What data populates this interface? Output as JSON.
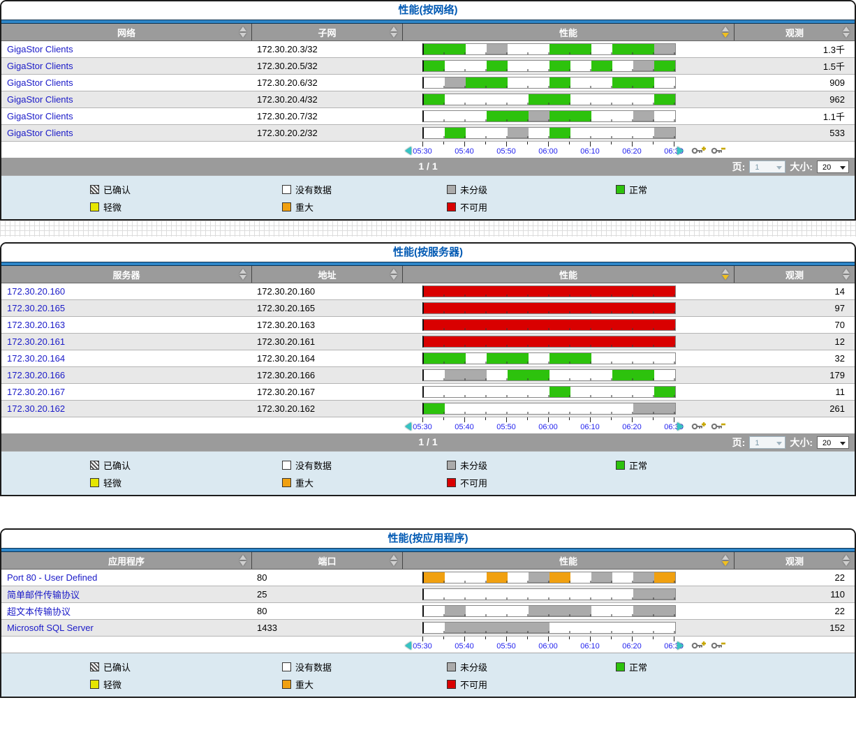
{
  "colors": {
    "normal": "#2DC20D",
    "unclassified": "#ABABAB",
    "no_data": "#FFFFFF",
    "minor": "#E6E600",
    "major": "#F0A010",
    "unavailable": "#D90000",
    "header_bg": "#9B9B9B",
    "legend_bg": "#DBE9F1",
    "title_blue": "#0059B3",
    "link_blue": "#1A1AC8"
  },
  "time_axis": {
    "labels": [
      "05:30",
      "05:40",
      "05:50",
      "06:00",
      "06:10",
      "06:20",
      "06:30"
    ],
    "prev_arrow": "previous-time-range",
    "next_arrow": "next-time-range",
    "zoom_in": "zoom-in-time",
    "zoom_out": "zoom-out-time"
  },
  "pagination": {
    "position_text": "1 / 1",
    "page_label": "页:",
    "page_value": "1",
    "size_label": "大小:",
    "size_value": "20"
  },
  "legend": {
    "rows": [
      [
        {
          "label": "已确认",
          "type": "ack"
        },
        {
          "label": "没有数据",
          "type": "nodata"
        },
        {
          "label": "未分级",
          "type": "unclassified"
        },
        {
          "label": "正常",
          "type": "normal"
        }
      ],
      [
        {
          "label": "轻微",
          "type": "minor"
        },
        {
          "label": "重大",
          "type": "major"
        },
        {
          "label": "不可用",
          "type": "unavailable"
        }
      ]
    ]
  },
  "segment_legend_key": {
    "G": "normal",
    "N": "unclassified",
    "W": "no-data",
    "R": "unavailable",
    "O": "major",
    "Y": "minor"
  },
  "panels": [
    {
      "title": "性能(按网络)",
      "columns": [
        "网络",
        "子网",
        "性能",
        "观测"
      ],
      "sorted_column": 2,
      "has_pagination": true,
      "rows": [
        {
          "name": "GigaStor Clients",
          "value": "172.30.20.3/32",
          "obs": "1.3千",
          "segments": [
            "G",
            "G",
            "W",
            "N",
            "W",
            "W",
            "G",
            "G",
            "W",
            "G",
            "G",
            "N"
          ]
        },
        {
          "name": "GigaStor Clients",
          "value": "172.30.20.5/32",
          "obs": "1.5千",
          "segments": [
            "G",
            "W",
            "W",
            "G",
            "W",
            "W",
            "G",
            "W",
            "G",
            "W",
            "N",
            "G"
          ]
        },
        {
          "name": "GigaStor Clients",
          "value": "172.30.20.6/32",
          "obs": "909",
          "segments": [
            "W",
            "N",
            "G",
            "G",
            "W",
            "W",
            "G",
            "W",
            "W",
            "G",
            "G",
            "W"
          ]
        },
        {
          "name": "GigaStor Clients",
          "value": "172.30.20.4/32",
          "obs": "962",
          "segments": [
            "G",
            "W",
            "W",
            "W",
            "W",
            "G",
            "G",
            "W",
            "W",
            "W",
            "W",
            "G"
          ]
        },
        {
          "name": "GigaStor Clients",
          "value": "172.30.20.7/32",
          "obs": "1.1千",
          "segments": [
            "W",
            "W",
            "W",
            "G",
            "G",
            "N",
            "G",
            "G",
            "W",
            "W",
            "N",
            "W"
          ]
        },
        {
          "name": "GigaStor Clients",
          "value": "172.30.20.2/32",
          "obs": "533",
          "segments": [
            "W",
            "G",
            "W",
            "W",
            "N",
            "W",
            "G",
            "W",
            "W",
            "W",
            "W",
            "N"
          ]
        }
      ]
    },
    {
      "title": "性能(按服务器)",
      "columns": [
        "服务器",
        "地址",
        "性能",
        "观测"
      ],
      "sorted_column": 2,
      "has_pagination": true,
      "rows": [
        {
          "name": "172.30.20.160",
          "value": "172.30.20.160",
          "obs": "14",
          "segments": [
            "R",
            "R",
            "R",
            "R",
            "R",
            "R",
            "R",
            "R",
            "R",
            "R",
            "R",
            "R"
          ]
        },
        {
          "name": "172.30.20.165",
          "value": "172.30.20.165",
          "obs": "97",
          "segments": [
            "R",
            "R",
            "R",
            "R",
            "R",
            "R",
            "R",
            "R",
            "R",
            "R",
            "R",
            "R"
          ]
        },
        {
          "name": "172.30.20.163",
          "value": "172.30.20.163",
          "obs": "70",
          "segments": [
            "R",
            "R",
            "R",
            "R",
            "R",
            "R",
            "R",
            "R",
            "R",
            "R",
            "R",
            "R"
          ]
        },
        {
          "name": "172.30.20.161",
          "value": "172.30.20.161",
          "obs": "12",
          "segments": [
            "R",
            "R",
            "R",
            "R",
            "R",
            "R",
            "R",
            "R",
            "R",
            "R",
            "R",
            "R"
          ]
        },
        {
          "name": "172.30.20.164",
          "value": "172.30.20.164",
          "obs": "32",
          "segments": [
            "G",
            "G",
            "W",
            "G",
            "G",
            "W",
            "G",
            "G",
            "W",
            "W",
            "W",
            "W"
          ]
        },
        {
          "name": "172.30.20.166",
          "value": "172.30.20.166",
          "obs": "179",
          "segments": [
            "W",
            "N",
            "N",
            "W",
            "G",
            "G",
            "W",
            "W",
            "W",
            "G",
            "G",
            "W"
          ]
        },
        {
          "name": "172.30.20.167",
          "value": "172.30.20.167",
          "obs": "11",
          "segments": [
            "W",
            "W",
            "W",
            "W",
            "W",
            "W",
            "G",
            "W",
            "W",
            "W",
            "W",
            "G"
          ]
        },
        {
          "name": "172.30.20.162",
          "value": "172.30.20.162",
          "obs": "261",
          "segments": [
            "G",
            "W",
            "W",
            "W",
            "W",
            "W",
            "W",
            "W",
            "W",
            "W",
            "N",
            "N"
          ]
        }
      ]
    },
    {
      "title": "性能(按应用程序)",
      "columns": [
        "应用程序",
        "端口",
        "性能",
        "观测"
      ],
      "sorted_column": 2,
      "has_pagination": false,
      "rows": [
        {
          "name": "Port 80 - User Defined",
          "value": "80",
          "obs": "22",
          "segments": [
            "O",
            "W",
            "W",
            "O",
            "W",
            "N",
            "O",
            "W",
            "N",
            "W",
            "N",
            "O"
          ]
        },
        {
          "name": "简单邮件传输协议",
          "value": "25",
          "obs": "110",
          "segments": [
            "W",
            "W",
            "W",
            "W",
            "W",
            "W",
            "W",
            "W",
            "W",
            "W",
            "N",
            "N"
          ]
        },
        {
          "name": "超文本传输协议",
          "value": "80",
          "obs": "22",
          "segments": [
            "W",
            "N",
            "W",
            "W",
            "W",
            "N",
            "N",
            "N",
            "W",
            "W",
            "N",
            "N"
          ]
        },
        {
          "name": "Microsoft SQL Server",
          "value": "1433",
          "obs": "152",
          "segments": [
            "W",
            "N",
            "N",
            "N",
            "N",
            "N",
            "W",
            "W",
            "W",
            "W",
            "W",
            "W"
          ]
        }
      ]
    }
  ]
}
